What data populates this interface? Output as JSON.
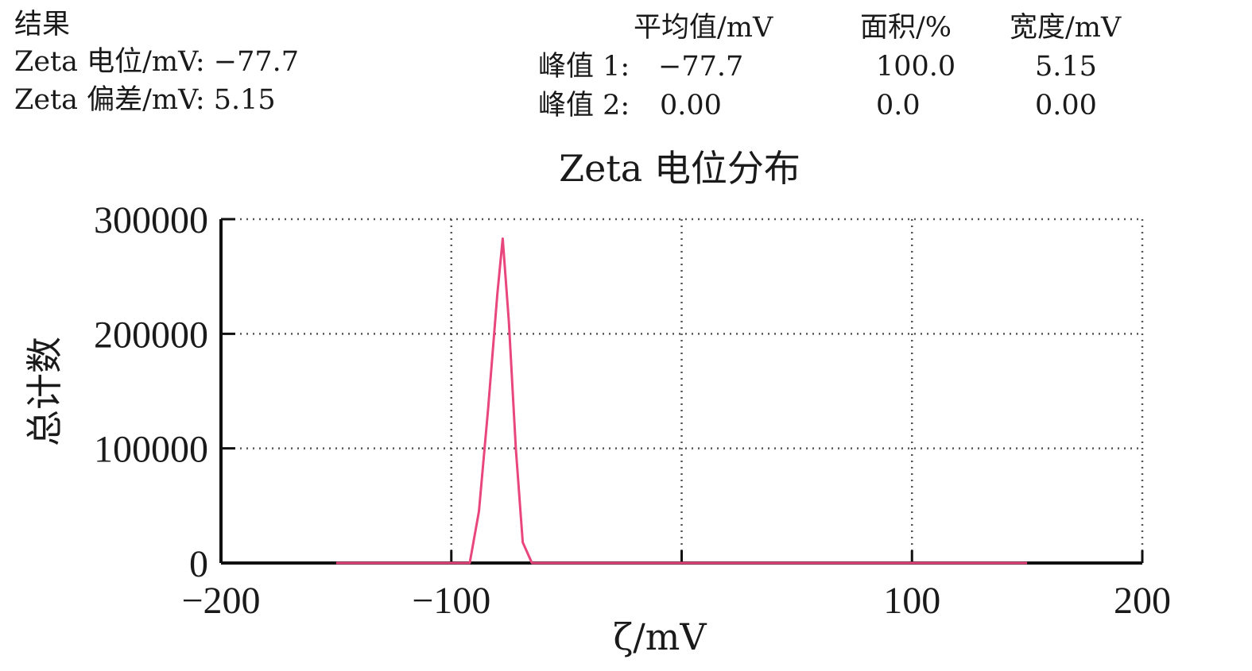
{
  "results": {
    "heading": "结果",
    "zeta_potential": "Zeta 电位/mV: −77.7",
    "zeta_deviation": "Zeta 偏差/mV: 5.15"
  },
  "peak_table": {
    "headers": [
      "平均值/mV",
      "面积/%",
      "宽度/mV"
    ],
    "rows": [
      {
        "label": "峰值 1:",
        "mean": "−77.7",
        "area": "100.0",
        "width": "5.15"
      },
      {
        "label": "峰值 2:",
        "mean": "0.00",
        "area": "0.0",
        "width": "0.00"
      }
    ]
  },
  "chart_data": {
    "type": "line",
    "title": "Zeta 电位分布",
    "xlabel": "ζ/mV",
    "ylabel": "总计数",
    "xlim": [
      -200,
      200
    ],
    "ylim": [
      0,
      300000
    ],
    "xticks": [
      -200,
      -100,
      0,
      100,
      200
    ],
    "xtick_labels": [
      "−200",
      "−100",
      "",
      "100",
      "200"
    ],
    "yticks": [
      0,
      100000,
      200000,
      300000
    ],
    "ytick_labels": [
      "0",
      "100000",
      "200000",
      "300000"
    ],
    "grid": true,
    "series": [
      {
        "color": "#e8467c",
        "x": [
          -150,
          -92,
          -88,
          -84,
          -80,
          -77.7,
          -75,
          -72,
          -69,
          -65,
          150
        ],
        "y": [
          0,
          0,
          45000,
          135000,
          235000,
          283000,
          210000,
          100000,
          18000,
          0,
          0
        ]
      }
    ]
  }
}
